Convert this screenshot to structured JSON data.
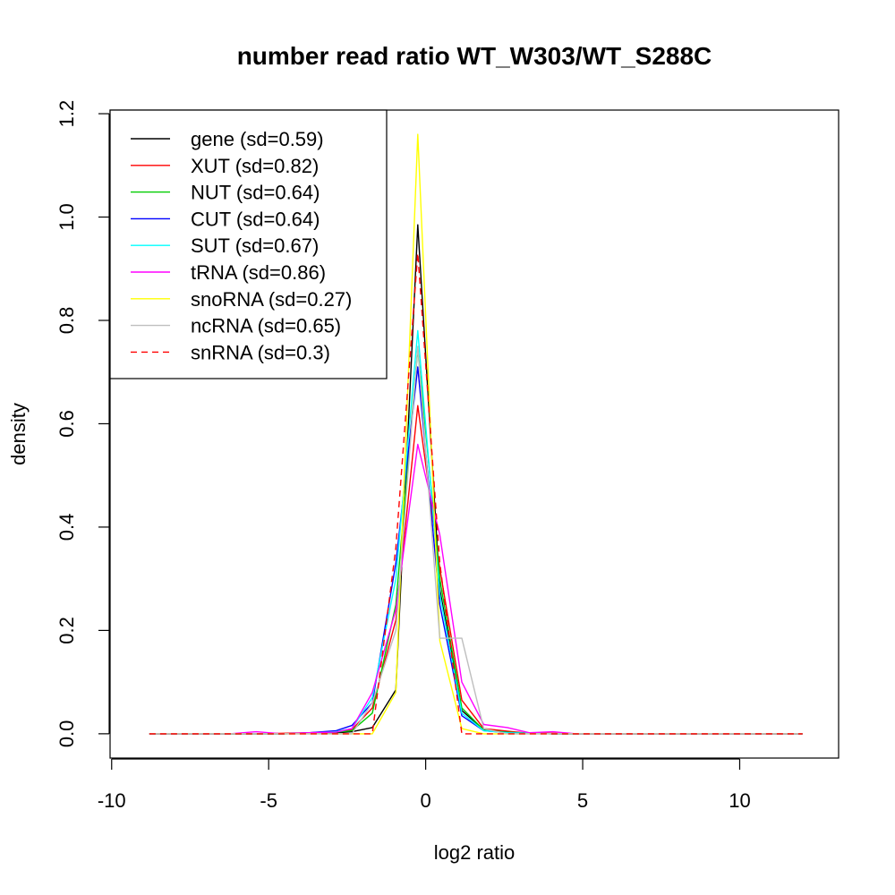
{
  "chart_data": {
    "type": "line",
    "title": "number read ratio WT_W303/WT_S288C",
    "xlabel": "log2 ratio",
    "ylabel": "density",
    "xlim": [
      -10.05,
      13.15
    ],
    "ylim": [
      -0.047,
      1.207
    ],
    "xticks": [
      -10,
      -5,
      0,
      5,
      10
    ],
    "xtick_labels": [
      "-10",
      "-5",
      "0",
      "5",
      "10"
    ],
    "yticks": [
      0.0,
      0.2,
      0.4,
      0.6,
      0.8,
      1.0,
      1.2
    ],
    "ytick_labels": [
      "0.0",
      "0.2",
      "0.4",
      "0.6",
      "0.8",
      "1.0",
      "1.2"
    ],
    "grid": false,
    "legend_position": "top-left",
    "x": [
      -8.8,
      -7.95,
      -7.1,
      -6.25,
      -5.4,
      -4.55,
      -3.7,
      -2.85,
      -2.35,
      -1.7,
      -0.95,
      -0.25,
      0.45,
      1.15,
      1.85,
      2.6,
      3.3,
      4.05,
      4.8,
      12.0
    ],
    "series": [
      {
        "name": "gene (sd=0.59)",
        "color": "#000000",
        "dash": "solid",
        "values": [
          0,
          0,
          0,
          0,
          0,
          0,
          0.001,
          0.002,
          0.004,
          0.012,
          0.085,
          0.985,
          0.28,
          0.045,
          0.008,
          0.003,
          0.001,
          0,
          0,
          0
        ]
      },
      {
        "name": "XUT (sd=0.82)",
        "color": "#ff0000",
        "dash": "solid",
        "values": [
          0,
          0,
          0,
          0,
          0,
          0.001,
          0.002,
          0.004,
          0.008,
          0.05,
          0.22,
          0.635,
          0.32,
          0.065,
          0.01,
          0.005,
          0.001,
          0.001,
          0,
          0
        ]
      },
      {
        "name": "NUT (sd=0.64)",
        "color": "#00cd00",
        "dash": "solid",
        "values": [
          0,
          0,
          0,
          0,
          0,
          0,
          0.001,
          0.003,
          0.006,
          0.04,
          0.25,
          0.745,
          0.3,
          0.05,
          0.007,
          0.003,
          0.001,
          0,
          0,
          0
        ]
      },
      {
        "name": "CUT (sd=0.64)",
        "color": "#0000ff",
        "dash": "solid",
        "values": [
          0,
          0,
          0,
          0,
          0,
          0,
          0.002,
          0.006,
          0.016,
          0.06,
          0.33,
          0.71,
          0.25,
          0.035,
          0.006,
          0.002,
          0.001,
          0,
          0,
          0
        ]
      },
      {
        "name": "SUT (sd=0.67)",
        "color": "#00ffff",
        "dash": "solid",
        "values": [
          0,
          0,
          0,
          0,
          0,
          0,
          0.001,
          0.004,
          0.01,
          0.07,
          0.3,
          0.78,
          0.27,
          0.04,
          0.006,
          0.002,
          0.001,
          0,
          0,
          0
        ]
      },
      {
        "name": "tRNA (sd=0.86)",
        "color": "#ff00ff",
        "dash": "solid",
        "values": [
          0,
          0,
          0,
          0,
          0.004,
          0,
          0.002,
          0.003,
          0.01,
          0.08,
          0.24,
          0.56,
          0.385,
          0.1,
          0.018,
          0.012,
          0.002,
          0.004,
          0,
          0
        ]
      },
      {
        "name": "snoRNA (sd=0.27)",
        "color": "#ffff00",
        "dash": "solid",
        "values": [
          0,
          0,
          0,
          0,
          0,
          0,
          0,
          0,
          0,
          0,
          0.08,
          1.16,
          0.18,
          0.01,
          0,
          0,
          0,
          0,
          0,
          0
        ]
      },
      {
        "name": "ncRNA (sd=0.65)",
        "color": "#bebebe",
        "dash": "solid",
        "values": [
          0,
          0,
          0,
          0,
          0,
          0,
          0,
          0,
          0,
          0.06,
          0.2,
          0.75,
          0.185,
          0.185,
          0.01,
          0,
          0,
          0,
          0,
          0
        ]
      },
      {
        "name": "snRNA (sd=0.3)",
        "color": "#ff0000",
        "dash": "dashed",
        "values": [
          0,
          0,
          0,
          0,
          0,
          0,
          0,
          0,
          0,
          0,
          0.36,
          0.93,
          0.33,
          0,
          0,
          0,
          0,
          0,
          0,
          0
        ]
      }
    ]
  }
}
